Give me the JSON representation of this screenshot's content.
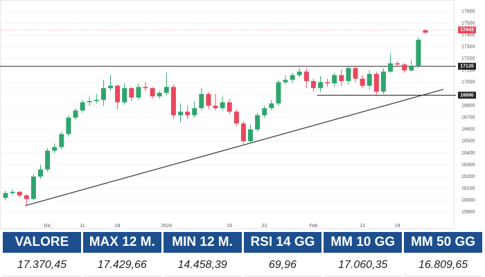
{
  "chart_data": {
    "type": "candlestick",
    "categories": [
      null,
      null,
      null,
      null,
      null,
      null,
      "Dic",
      null,
      null,
      null,
      null,
      "11",
      null,
      null,
      null,
      null,
      "18",
      null,
      null,
      null,
      null,
      null,
      null,
      "2024",
      null,
      null,
      null,
      null,
      null,
      null,
      null,
      null,
      "15",
      null,
      null,
      null,
      null,
      "22",
      null,
      null,
      null,
      null,
      null,
      null,
      "Feb",
      null,
      null,
      null,
      null,
      null,
      null,
      "12",
      null,
      null,
      null,
      null,
      "19",
      null,
      null,
      null,
      null
    ],
    "open": [
      16020,
      16060,
      16070,
      16040,
      16010,
      16200,
      16260,
      16420,
      16450,
      16560,
      16700,
      16760,
      16830,
      16840,
      16850,
      16950,
      16970,
      16830,
      16950,
      16870,
      16960,
      16950,
      16880,
      16910,
      16960,
      16720,
      16750,
      16720,
      16780,
      16900,
      16800,
      16780,
      16830,
      16750,
      16650,
      16500,
      16600,
      16720,
      16780,
      16820,
      17000,
      17020,
      17060,
      17090,
      17010,
      16950,
      17000,
      16990,
      17060,
      17010,
      17120,
      17030,
      16970,
      17070,
      16920,
      17090,
      17160,
      17150,
      17100,
      17140,
      17440
    ],
    "high": [
      16080,
      16090,
      16080,
      16050,
      16220,
      16300,
      16440,
      16480,
      16580,
      16720,
      16780,
      16850,
      16880,
      16900,
      17020,
      17060,
      16980,
      16990,
      16960,
      16990,
      17000,
      16960,
      16930,
      17080,
      16980,
      16820,
      16800,
      16840,
      16950,
      16920,
      16900,
      16880,
      16860,
      16770,
      16670,
      16640,
      16740,
      16800,
      16850,
      17020,
      17060,
      17080,
      17120,
      17120,
      17030,
      17050,
      17030,
      17080,
      17110,
      17130,
      17130,
      17060,
      17100,
      17090,
      17120,
      17240,
      17180,
      17160,
      17190,
      17380,
      17450
    ],
    "low": [
      16000,
      16040,
      16020,
      15950,
      16000,
      16180,
      16240,
      16400,
      16430,
      16540,
      16680,
      16740,
      16800,
      16820,
      16800,
      16930,
      16770,
      16810,
      16840,
      16850,
      16920,
      16860,
      16860,
      16890,
      16690,
      16660,
      16690,
      16700,
      16760,
      16770,
      16760,
      16760,
      16730,
      16630,
      16480,
      16480,
      16580,
      16700,
      16760,
      16800,
      16980,
      16990,
      17040,
      16950,
      16920,
      16920,
      16960,
      16960,
      16970,
      16980,
      17000,
      16950,
      16940,
      16880,
      16900,
      17080,
      17130,
      17080,
      17090,
      17120,
      17410
    ],
    "close": [
      16060,
      16070,
      16040,
      16010,
      16200,
      16260,
      16420,
      16450,
      16560,
      16700,
      16760,
      16830,
      16840,
      16850,
      16950,
      16970,
      16830,
      16950,
      16870,
      16960,
      16950,
      16880,
      16910,
      16960,
      16720,
      16750,
      16720,
      16780,
      16900,
      16800,
      16780,
      16830,
      16750,
      16650,
      16500,
      16600,
      16720,
      16780,
      16820,
      17000,
      17020,
      17060,
      17090,
      17010,
      16950,
      17000,
      16990,
      17060,
      17010,
      17120,
      17030,
      16970,
      17070,
      16920,
      17090,
      17160,
      17150,
      17100,
      17140,
      17360,
      17420
    ],
    "up_color": "#2fa56e",
    "down_color": "#e8475c",
    "ylim": [
      15830,
      17650
    ],
    "yticks": [
      15900,
      16000,
      16100,
      16200,
      16300,
      16400,
      16500,
      16600,
      16700,
      16800,
      16900,
      17000,
      17100,
      17200,
      17300,
      17400,
      17500,
      17600
    ],
    "hlines": [
      17135,
      16890
    ],
    "last_price": 17443,
    "trendline": {
      "x": [
        2.8,
        62.6
      ],
      "y": [
        15953,
        16940
      ]
    }
  },
  "table": {
    "header": [
      "VALORE",
      "MAX 12 M.",
      "MIN 12 M.",
      "RSI 14 GG",
      "MM 10 GG",
      "MM 50 GG"
    ],
    "row": [
      "17.370,45",
      "17.429,66",
      "14.458,39",
      "69,96",
      "17.060,35",
      "16.809,65"
    ]
  }
}
